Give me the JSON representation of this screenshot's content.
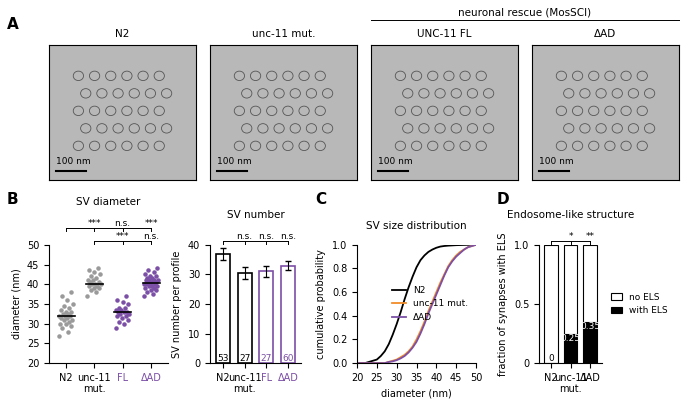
{
  "panel_A": {
    "panel": "A",
    "images": [
      {
        "title": "N2",
        "scale_bar": "100 nm"
      },
      {
        "title": "unc-11 mut.",
        "scale_bar": "100 nm"
      },
      {
        "title": "UNC-11 FL",
        "scale_bar": "100 nm"
      },
      {
        "title": "ΔAD",
        "scale_bar": "100 nm"
      }
    ],
    "group_label": "neuronal rescue (MosSCI)",
    "group_members": [
      "UNC-11 FL",
      "ΔAD"
    ]
  },
  "chart_data": [
    {
      "type": "scatter",
      "panel": "B",
      "title": "SV diameter",
      "y_label": "diameter (nm)",
      "categories": [
        "N2",
        "unc-11\nmut.",
        "FL",
        "ΔAD"
      ],
      "colors": [
        "#9a9a9a",
        "#9a9a9a",
        "#7b4fa6",
        "#7b4fa6"
      ],
      "tick_colors": [
        "#000000",
        "#000000",
        "#7b4fa6",
        "#7b4fa6"
      ],
      "points": [
        [
          27,
          28,
          29,
          29.5,
          30,
          30,
          30.5,
          31,
          31,
          31.5,
          31.5,
          32,
          32,
          32,
          32.5,
          32.5,
          33,
          33,
          33.5,
          34,
          34.5,
          35,
          36,
          37,
          38
        ],
        [
          37,
          38,
          38.5,
          39,
          39,
          39.5,
          39.5,
          40,
          40,
          40,
          40.5,
          40.5,
          41,
          41,
          41.5,
          42,
          42.5,
          43,
          43.5,
          44
        ],
        [
          29,
          30,
          30.5,
          31,
          31.5,
          32,
          32,
          32.5,
          32.5,
          33,
          33,
          33,
          33.5,
          33.5,
          34,
          34,
          35,
          35.5,
          36,
          37
        ],
        [
          37,
          37.5,
          38,
          38.5,
          38.5,
          39,
          39,
          39.5,
          39.5,
          39.5,
          40,
          40,
          40,
          40,
          40.5,
          40.5,
          40.5,
          40.5,
          41,
          41,
          41,
          41,
          41.5,
          41.5,
          42,
          42,
          42.5,
          43,
          43.5,
          44
        ]
      ],
      "means": [
        32,
        40,
        33,
        40.3
      ],
      "ylim": [
        20,
        50
      ],
      "yticks": [
        20,
        25,
        30,
        35,
        40,
        45,
        50
      ],
      "comparisons": [
        {
          "ref": "N2",
          "targets": [
            "unc-11\nmut.",
            "FL",
            "ΔAD"
          ],
          "labels": [
            "***",
            "n.s.",
            "***"
          ]
        },
        {
          "ref": "unc-11\nmut.",
          "targets": [
            "FL",
            "ΔAD"
          ],
          "labels": [
            "***",
            "n.s."
          ]
        }
      ]
    },
    {
      "type": "bar",
      "panel": "B",
      "title": "SV number",
      "y_label": "SV number per profile",
      "categories": [
        "N2",
        "unc-11\nmut.",
        "FL",
        "ΔAD"
      ],
      "values": [
        37,
        30.5,
        31,
        33
      ],
      "errors": [
        2,
        2,
        1.8,
        1.5
      ],
      "sample_sizes": [
        53,
        27,
        27,
        60
      ],
      "colors": [
        "#000000",
        "#000000",
        "#7b4fa6",
        "#7b4fa6"
      ],
      "ylim": [
        0,
        40
      ],
      "yticks": [
        0,
        10,
        20,
        30,
        40
      ],
      "comparisons": [
        {
          "ref": "N2",
          "targets": [
            "unc-11\nmut.",
            "FL",
            "ΔAD"
          ],
          "labels": [
            "n.s.",
            "n.s.",
            "n.s."
          ]
        }
      ]
    },
    {
      "type": "line",
      "panel": "C",
      "title": "SV size distribution",
      "x_label": "diameter (nm)",
      "y_label": "cumulative probability",
      "x": [
        20,
        21,
        22,
        23,
        24,
        25,
        26,
        27,
        28,
        29,
        30,
        31,
        32,
        33,
        34,
        35,
        36,
        37,
        38,
        39,
        40,
        41,
        42,
        43,
        44,
        45,
        46,
        47,
        48,
        49,
        50
      ],
      "series": [
        {
          "name": "N2",
          "color": "#000000",
          "values": [
            0,
            0,
            0,
            0.01,
            0.02,
            0.03,
            0.06,
            0.1,
            0.16,
            0.24,
            0.33,
            0.43,
            0.54,
            0.64,
            0.73,
            0.81,
            0.87,
            0.91,
            0.94,
            0.96,
            0.975,
            0.985,
            0.99,
            0.993,
            0.995,
            0.997,
            0.998,
            0.999,
            1,
            1,
            1
          ]
        },
        {
          "name": "unc-11 mut.",
          "color": "#f28c28",
          "values": [
            0,
            0,
            0,
            0,
            0,
            0,
            0,
            0,
            0.01,
            0.02,
            0.03,
            0.05,
            0.07,
            0.1,
            0.14,
            0.2,
            0.27,
            0.35,
            0.44,
            0.52,
            0.6,
            0.68,
            0.75,
            0.82,
            0.87,
            0.91,
            0.94,
            0.96,
            0.98,
            0.99,
            1
          ]
        },
        {
          "name": "ΔAD",
          "color": "#7b4fa6",
          "values": [
            0,
            0,
            0,
            0,
            0,
            0,
            0,
            0,
            0.01,
            0.015,
            0.025,
            0.04,
            0.06,
            0.09,
            0.13,
            0.18,
            0.25,
            0.33,
            0.42,
            0.5,
            0.58,
            0.66,
            0.74,
            0.81,
            0.86,
            0.9,
            0.93,
            0.96,
            0.98,
            0.99,
            1
          ]
        }
      ],
      "xlim": [
        20,
        50
      ],
      "xticks": [
        20,
        25,
        30,
        35,
        40,
        45,
        50
      ],
      "ylim": [
        0,
        1.0
      ],
      "yticks": [
        {
          "value": 0,
          "label": "0.0"
        },
        0.2,
        0.4,
        0.6,
        0.8,
        {
          "value": 1.0,
          "label": "1.0"
        }
      ],
      "legend": "center right"
    },
    {
      "type": "bar",
      "panel": "D",
      "title": "Endosome-like structure",
      "stacked": true,
      "y_label": "fraction of synapses with ELS",
      "categories": [
        "N2",
        "unc-11\nmut.",
        "ΔAD"
      ],
      "series": [
        {
          "name": "with ELS",
          "color": "#000000",
          "values": [
            0,
            0.25,
            0.35
          ],
          "data_labels": true
        },
        {
          "name": "no ELS",
          "color": "#ffffff",
          "values": [
            1,
            0.75,
            0.65
          ]
        }
      ],
      "ylim": [
        0,
        1.0
      ],
      "yticks": [
        0,
        0.5,
        {
          "value": 1.0,
          "label": "1.0"
        }
      ],
      "legend": "right",
      "comparisons": [
        {
          "ref": "N2",
          "targets": [
            "unc-11\nmut.",
            "ΔAD"
          ],
          "labels": [
            "*",
            "**"
          ]
        }
      ]
    }
  ]
}
